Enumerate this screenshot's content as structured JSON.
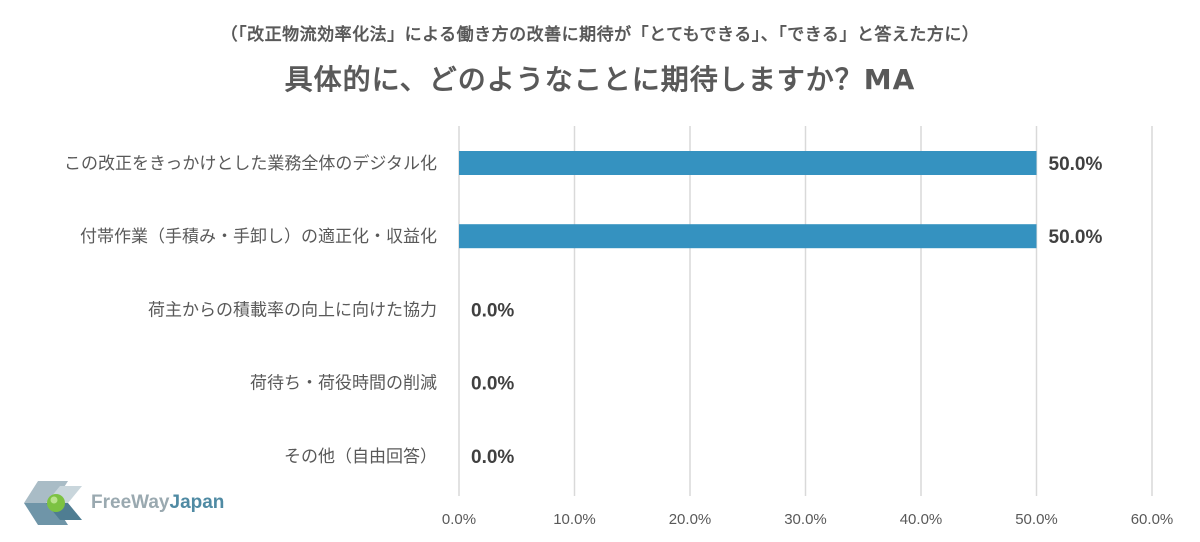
{
  "header": {
    "subtitle": "（「改正物流効率化法」による働き方の改善に期待が「とてもできる」、「できる」と答えた方に）",
    "title": "具体的に、どのようなことに期待しますか？MA"
  },
  "logo": {
    "name_part1": "FreeWay",
    "name_part2": "Japan"
  },
  "colors": {
    "bar": "#3592c0",
    "grid": "#d9d9d9"
  },
  "chart_data": {
    "type": "bar",
    "orientation": "horizontal",
    "categories": [
      "この改正をきっかけとした業務全体のデジタル化",
      "付帯作業（手積み・手卸し）の適正化・収益化",
      "荷主からの積載率の向上に向けた協力",
      "荷待ち・荷役時間の削減",
      "その他（自由回答）"
    ],
    "values": [
      50.0,
      50.0,
      0.0,
      0.0,
      0.0
    ],
    "value_labels": [
      "50.0%",
      "50.0%",
      "0.0%",
      "0.0%",
      "0.0%"
    ],
    "xlim": [
      0,
      60
    ],
    "xticks": [
      0,
      10,
      20,
      30,
      40,
      50,
      60
    ],
    "xtick_labels": [
      "0.0%",
      "10.0%",
      "20.0%",
      "30.0%",
      "40.0%",
      "50.0%",
      "60.0%"
    ],
    "grid": true,
    "legend": "none"
  }
}
